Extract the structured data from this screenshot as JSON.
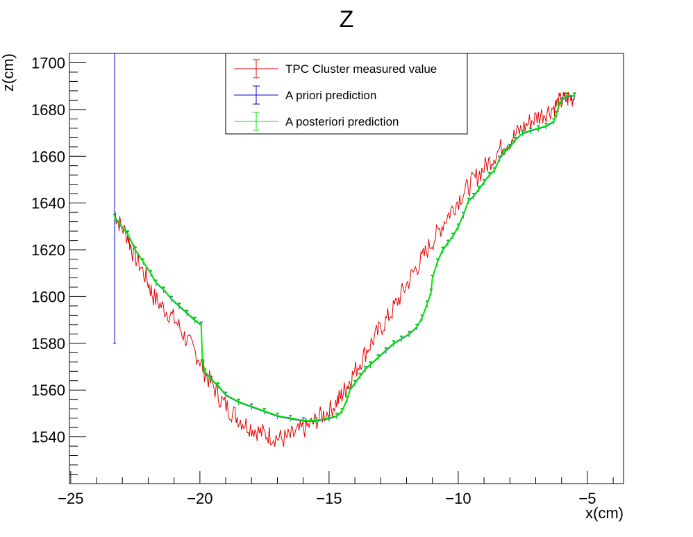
{
  "chart_data": {
    "type": "line",
    "title": "Z",
    "xlabel": "x(cm)",
    "ylabel": "z(cm)",
    "xlim": [
      -25.05,
      -3.6
    ],
    "ylim": [
      1520,
      1704
    ],
    "x_ticks": [
      "−25",
      "−20",
      "−15",
      "−10",
      "−5"
    ],
    "x_tick_values": [
      -25,
      -20,
      -15,
      -10,
      -5
    ],
    "y_ticks": [
      "1540",
      "1560",
      "1580",
      "1600",
      "1620",
      "1640",
      "1660",
      "1680",
      "1700"
    ],
    "y_tick_values": [
      1540,
      1560,
      1580,
      1600,
      1620,
      1640,
      1660,
      1680,
      1700
    ],
    "grid": false,
    "legend_position": "top-center",
    "series": [
      {
        "name": "TPC Cluster measured value",
        "color": "#e60000",
        "style": "noisy-line",
        "x": [
          -23.3,
          -23.1,
          -22.8,
          -22.6,
          -22.3,
          -22.0,
          -21.8,
          -21.5,
          -21.2,
          -20.9,
          -20.6,
          -20.3,
          -20.0,
          -19.8,
          -19.5,
          -19.2,
          -18.9,
          -18.6,
          -18.3,
          -18.0,
          -17.7,
          -17.4,
          -17.1,
          -16.8,
          -16.5,
          -16.2,
          -15.9,
          -15.6,
          -15.3,
          -15.0,
          -14.7,
          -14.5,
          -14.3,
          -14.1,
          -13.8,
          -13.5,
          -13.2,
          -12.9,
          -12.6,
          -12.3,
          -12.0,
          -11.7,
          -11.4,
          -11.1,
          -10.8,
          -10.5,
          -10.2,
          -9.9,
          -9.6,
          -9.3,
          -9.0,
          -8.7,
          -8.4,
          -8.1,
          -7.8,
          -7.5,
          -7.2,
          -6.9,
          -6.6,
          -6.3,
          -6.1,
          -5.9,
          -5.7,
          -5.5
        ],
        "y": [
          1636,
          1631,
          1626,
          1619,
          1613,
          1606,
          1600,
          1596,
          1593,
          1589,
          1583,
          1578,
          1573,
          1567,
          1562,
          1556,
          1552,
          1549,
          1546,
          1544,
          1542,
          1541,
          1540,
          1539,
          1540,
          1542,
          1544,
          1546,
          1549,
          1551,
          1555,
          1558,
          1562,
          1566,
          1572,
          1578,
          1583,
          1588,
          1593,
          1599,
          1605,
          1611,
          1616,
          1622,
          1627,
          1633,
          1638,
          1643,
          1647,
          1651,
          1655,
          1659,
          1663,
          1666,
          1669,
          1672,
          1675,
          1677,
          1679,
          1681,
          1683,
          1684,
          1685,
          1685
        ]
      },
      {
        "name": "A priori prediction",
        "color": "#0000d0",
        "style": "line-with-errorbars",
        "first_point_error": {
          "x": -23.3,
          "low": 1580,
          "high": 1704
        },
        "x": [
          -23.3,
          -23.1,
          -22.8,
          -22.5,
          -22.2,
          -21.9,
          -21.7,
          -21.4,
          -21.1,
          -20.8,
          -20.5,
          -20.2,
          -19.95,
          -19.9,
          -19.8,
          -19.6,
          -19.3,
          -19.0,
          -18.5,
          -18.0,
          -17.5,
          -17.0,
          -16.5,
          -16.0,
          -15.5,
          -15.0,
          -14.7,
          -14.5,
          -14.3,
          -14.2,
          -14.0,
          -13.8,
          -13.6,
          -13.4,
          -13.1,
          -12.8,
          -12.5,
          -12.2,
          -11.9,
          -11.6,
          -11.4,
          -11.2,
          -11.05,
          -11.0,
          -10.8,
          -10.6,
          -10.4,
          -10.2,
          -10.0,
          -9.8,
          -9.6,
          -9.4,
          -9.2,
          -9.0,
          -8.8,
          -8.6,
          -8.4,
          -8.2,
          -8.0,
          -7.8,
          -7.5,
          -7.2,
          -6.9,
          -6.6,
          -6.3,
          -6.2,
          -6.1,
          -6.0,
          -5.8,
          -5.5
        ],
        "y": [
          1634,
          1631,
          1627,
          1620,
          1615,
          1610,
          1606,
          1603,
          1599,
          1596,
          1593,
          1590,
          1588,
          1572,
          1568,
          1565,
          1562,
          1558,
          1555,
          1553,
          1551,
          1549,
          1548,
          1547,
          1547,
          1548,
          1549,
          1551,
          1556,
          1560,
          1563,
          1566,
          1569,
          1571,
          1574,
          1577,
          1580,
          1582,
          1584,
          1587,
          1591,
          1597,
          1602,
          1608,
          1615,
          1620,
          1623,
          1626,
          1630,
          1635,
          1641,
          1643,
          1646,
          1649,
          1652,
          1654,
          1659,
          1662,
          1664,
          1667,
          1670,
          1671,
          1672,
          1673,
          1675,
          1678,
          1682,
          1684,
          1686,
          1686
        ]
      },
      {
        "name": "A posteriori prediction",
        "color": "#00e600",
        "style": "line-with-errorbars",
        "x": [
          -23.3,
          -23.1,
          -22.8,
          -22.5,
          -22.2,
          -21.9,
          -21.7,
          -21.4,
          -21.1,
          -20.8,
          -20.5,
          -20.2,
          -19.95,
          -19.9,
          -19.8,
          -19.6,
          -19.3,
          -19.0,
          -18.5,
          -18.0,
          -17.5,
          -17.0,
          -16.5,
          -16.0,
          -15.5,
          -15.0,
          -14.7,
          -14.5,
          -14.3,
          -14.2,
          -14.0,
          -13.8,
          -13.6,
          -13.4,
          -13.1,
          -12.8,
          -12.5,
          -12.2,
          -11.9,
          -11.6,
          -11.4,
          -11.2,
          -11.05,
          -11.0,
          -10.8,
          -10.6,
          -10.4,
          -10.2,
          -10.0,
          -9.8,
          -9.6,
          -9.4,
          -9.2,
          -9.0,
          -8.8,
          -8.6,
          -8.4,
          -8.2,
          -8.0,
          -7.8,
          -7.5,
          -7.2,
          -6.9,
          -6.6,
          -6.3,
          -6.2,
          -6.1,
          -6.0,
          -5.8,
          -5.5
        ],
        "y": [
          1634,
          1631,
          1627,
          1620,
          1615,
          1610,
          1606,
          1603,
          1599,
          1596,
          1593,
          1590,
          1588,
          1572,
          1568,
          1565,
          1562,
          1558,
          1555,
          1553,
          1551,
          1549,
          1548,
          1547,
          1547,
          1548,
          1549,
          1551,
          1556,
          1560,
          1563,
          1566,
          1569,
          1571,
          1574,
          1577,
          1580,
          1582,
          1584,
          1587,
          1591,
          1597,
          1602,
          1608,
          1615,
          1620,
          1623,
          1626,
          1630,
          1635,
          1641,
          1643,
          1646,
          1649,
          1652,
          1654,
          1659,
          1662,
          1664,
          1667,
          1670,
          1671,
          1672,
          1673,
          1675,
          1678,
          1682,
          1684,
          1686,
          1686
        ]
      }
    ]
  }
}
